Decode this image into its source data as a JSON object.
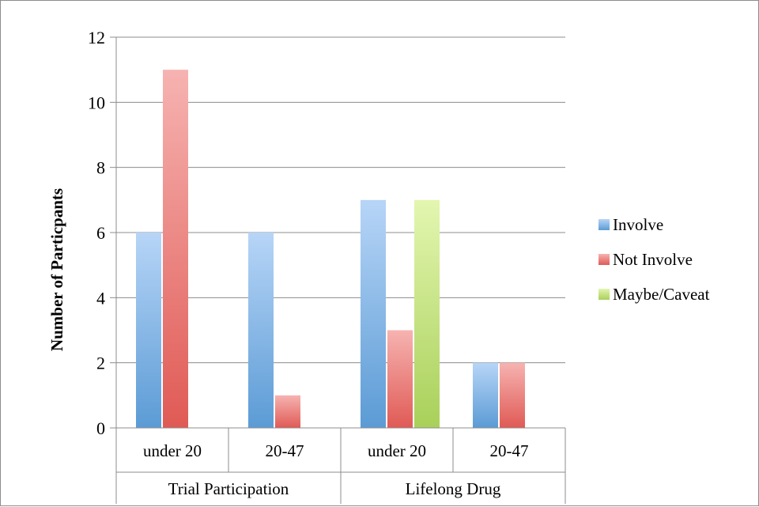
{
  "chart_data": {
    "type": "bar",
    "ylabel": "Number of Particpants",
    "ylim": [
      0,
      12
    ],
    "yticks": [
      0,
      2,
      4,
      6,
      8,
      10,
      12
    ],
    "grid": true,
    "legend_position": "right",
    "groups": [
      {
        "label": "Trial Participation",
        "categories": [
          "under 20",
          "20-47"
        ]
      },
      {
        "label": "Lifelong Drug",
        "categories": [
          "under 20",
          "20-47"
        ]
      }
    ],
    "categories": [
      "under 20",
      "20-47",
      "under 20",
      "20-47"
    ],
    "series": [
      {
        "name": "Involve",
        "values": [
          6,
          6,
          7,
          2
        ],
        "color": "#5b9bd5"
      },
      {
        "name": "Not Involve",
        "values": [
          11,
          1,
          3,
          2
        ],
        "color": "#e05a55"
      },
      {
        "name": "Maybe/Caveat",
        "values": [
          0,
          0,
          7,
          0
        ],
        "color": "#a9d05a"
      }
    ]
  }
}
